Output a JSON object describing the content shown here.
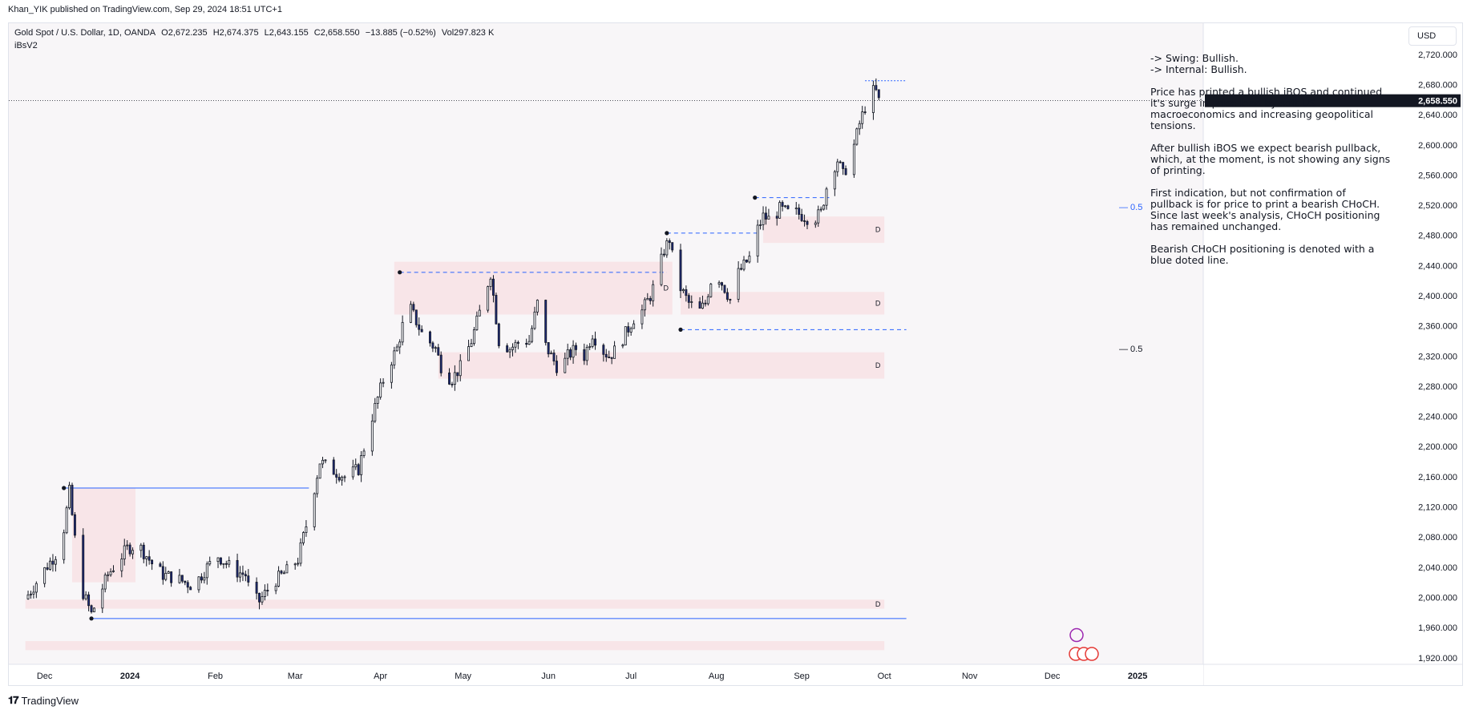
{
  "header": {
    "publish_text": "Khan_YIK published on TradingView.com, Sep 29, 2024 18:51 UTC+1"
  },
  "legend": {
    "symbol": "Gold Spot / U.S. Dollar, 1D, OANDA",
    "open": "O2,672.235",
    "high": "H2,674.375",
    "low": "L2,643.155",
    "close": "C2,658.550",
    "change": "−13.885 (−0.52%)",
    "volume": "Vol297.823 K",
    "indicator": "iBsV2"
  },
  "currency": "USD",
  "analysis": {
    "line1": "-> Swing: Bullish.",
    "line2": "-> Internal: Bullish.",
    "para1": "Price has printed a bullish iBOS and continued it's surge in price lead by soft US macroeconomics and increasing geopolitical tensions.",
    "para2": "After bullish iBOS we expect bearish pullback, which, at the moment, is not showing any signs of printing.",
    "para3": "First indication, but not confirmation of pullback is for price to print a bearish CHoCH.  Since last week's analysis, CHoCH positioning has remained unchanged.",
    "para4": "Bearish CHoCH positioning is denoted with a blue doted line."
  },
  "branding": {
    "logo_text": "TradingView"
  },
  "colors": {
    "up_fill": "#ffffff",
    "down_fill": "#1e2a78",
    "candle_outline": "#131722",
    "zone": "#f8d7da",
    "choch_line": "#2962ff",
    "price_badge": "#131722"
  },
  "chart_data": {
    "type": "candlestick",
    "title": "Gold Spot / U.S. Dollar, 1D, OANDA",
    "ylim": [
      1890,
      2740
    ],
    "y_ticks": [
      "2,720.000",
      "2,680.000",
      "2,640.000",
      "2,600.000",
      "2,560.000",
      "2,520.000",
      "2,480.000",
      "2,440.000",
      "2,400.000",
      "2,360.000",
      "2,320.000",
      "2,280.000",
      "2,240.000",
      "2,200.000",
      "2,160.000",
      "2,120.000",
      "2,080.000",
      "2,040.000",
      "2,000.000",
      "1,960.000",
      "1,920.000"
    ],
    "y_tick_values": [
      2720,
      2680,
      2640,
      2600,
      2560,
      2520,
      2480,
      2440,
      2400,
      2360,
      2320,
      2280,
      2240,
      2200,
      2160,
      2120,
      2080,
      2040,
      2000,
      1960,
      1920
    ],
    "x_ticks": [
      {
        "label": "Dec",
        "day": 7
      },
      {
        "label": "2024",
        "day": 38
      },
      {
        "label": "Feb",
        "day": 69
      },
      {
        "label": "Mar",
        "day": 98
      },
      {
        "label": "Apr",
        "day": 129
      },
      {
        "label": "May",
        "day": 159
      },
      {
        "label": "Jun",
        "day": 190
      },
      {
        "label": "Jul",
        "day": 220
      },
      {
        "label": "Aug",
        "day": 251
      },
      {
        "label": "Sep",
        "day": 282
      },
      {
        "label": "Oct",
        "day": 312
      },
      {
        "label": "Nov",
        "day": 343
      },
      {
        "label": "Dec",
        "day": 373
      },
      {
        "label": "2025",
        "day": 404
      }
    ],
    "day_range": [
      6,
      412
    ],
    "last_price": "2,658.550",
    "last_price_value": 2658.55,
    "anchors": [
      [
        0,
        1998
      ],
      [
        8,
        2042
      ],
      [
        13,
        2067
      ],
      [
        16,
        2140
      ],
      [
        20,
        2015
      ],
      [
        24,
        1978
      ],
      [
        30,
        2030
      ],
      [
        37,
        2065
      ],
      [
        41,
        2070
      ],
      [
        46,
        2045
      ],
      [
        50,
        2030
      ],
      [
        55,
        2025
      ],
      [
        61,
        2015
      ],
      [
        66,
        2040
      ],
      [
        70,
        2055
      ],
      [
        76,
        2035
      ],
      [
        80,
        2030
      ],
      [
        82,
        2000
      ],
      [
        85,
        1995
      ],
      [
        90,
        2020
      ],
      [
        95,
        2035
      ],
      [
        99,
        2050
      ],
      [
        103,
        2110
      ],
      [
        107,
        2180
      ],
      [
        111,
        2170
      ],
      [
        116,
        2160
      ],
      [
        121,
        2170
      ],
      [
        126,
        2240
      ],
      [
        131,
        2300
      ],
      [
        135,
        2330
      ],
      [
        139,
        2390
      ],
      [
        144,
        2350
      ],
      [
        149,
        2330
      ],
      [
        152,
        2295
      ],
      [
        155,
        2290
      ],
      [
        158,
        2305
      ],
      [
        162,
        2340
      ],
      [
        166,
        2390
      ],
      [
        169,
        2430
      ],
      [
        172,
        2340
      ],
      [
        176,
        2330
      ],
      [
        180,
        2340
      ],
      [
        183,
        2340
      ],
      [
        186,
        2390
      ],
      [
        188,
        2340
      ],
      [
        191,
        2320
      ],
      [
        194,
        2300
      ],
      [
        197,
        2320
      ],
      [
        200,
        2330
      ],
      [
        203,
        2320
      ],
      [
        206,
        2350
      ],
      [
        209,
        2330
      ],
      [
        212,
        2320
      ],
      [
        215,
        2330
      ],
      [
        218,
        2350
      ],
      [
        221,
        2370
      ],
      [
        224,
        2380
      ],
      [
        227,
        2400
      ],
      [
        229,
        2420
      ],
      [
        232,
        2460
      ],
      [
        234,
        2475
      ],
      [
        236,
        2430
      ],
      [
        238,
        2410
      ],
      [
        241,
        2390
      ],
      [
        243,
        2385
      ],
      [
        245,
        2380
      ],
      [
        247,
        2390
      ],
      [
        249,
        2420
      ],
      [
        251,
        2430
      ],
      [
        254,
        2410
      ],
      [
        256,
        2395
      ],
      [
        258,
        2425
      ],
      [
        261,
        2440
      ],
      [
        263,
        2450
      ],
      [
        265,
        2480
      ],
      [
        268,
        2505
      ],
      [
        271,
        2500
      ],
      [
        274,
        2515
      ],
      [
        277,
        2510
      ],
      [
        280,
        2510
      ],
      [
        283,
        2505
      ],
      [
        286,
        2500
      ],
      [
        289,
        2510
      ],
      [
        292,
        2560
      ],
      [
        295,
        2580
      ],
      [
        297,
        2560
      ],
      [
        300,
        2585
      ],
      [
        303,
        2628
      ],
      [
        305,
        2650
      ],
      [
        307,
        2672
      ],
      [
        309,
        2670
      ],
      [
        310,
        2658
      ]
    ],
    "zones": [
      {
        "day_start": 17,
        "day_end": 40,
        "low": 2020,
        "high": 2145,
        "label": ""
      },
      {
        "day_start": 134,
        "day_end": 235,
        "low": 2375,
        "high": 2445,
        "label": "D"
      },
      {
        "day_start": 268,
        "day_end": 312,
        "low": 2470,
        "high": 2505,
        "label": "D"
      },
      {
        "day_start": 238,
        "day_end": 312,
        "low": 2375,
        "high": 2405,
        "label": "D"
      },
      {
        "day_start": 150,
        "day_end": 312,
        "low": 2290,
        "high": 2325,
        "label": "D"
      },
      {
        "day_start": 0,
        "day_end": 312,
        "low": 1985,
        "high": 1997,
        "label": "D"
      },
      {
        "day_start": 0,
        "day_end": 312,
        "low": 1930,
        "high": 1942,
        "label": ""
      }
    ],
    "levels": [
      {
        "name": "choch-line-upper",
        "day_start": 238,
        "day_end": 320,
        "price": 2355,
        "style": "dashed",
        "label": ""
      },
      {
        "name": "swing-high-line",
        "day_start": 14,
        "day_end": 103,
        "price": 2145,
        "style": "solid",
        "label": ""
      },
      {
        "name": "swing-low-line",
        "day_start": 24,
        "day_end": 320,
        "price": 1972,
        "style": "solid",
        "label": ""
      },
      {
        "name": "ibos-line-april",
        "day_start": 136,
        "day_end": 233,
        "price": 2431,
        "style": "dashed",
        "label": ""
      },
      {
        "name": "ibos-line-july",
        "day_start": 233,
        "day_end": 267,
        "price": 2483,
        "style": "dashed",
        "label": ""
      },
      {
        "name": "ibos-line-aug",
        "day_start": 265,
        "day_end": 292,
        "price": 2530,
        "style": "dashed",
        "label": ""
      },
      {
        "name": "current-high-line",
        "day_start": 305,
        "day_end": 320,
        "price": 2685,
        "style": "dotted",
        "label": ""
      }
    ],
    "fib_labels": [
      {
        "text": "0.5",
        "price": 2518
      },
      {
        "text": "0.5",
        "price": 2330
      }
    ]
  }
}
